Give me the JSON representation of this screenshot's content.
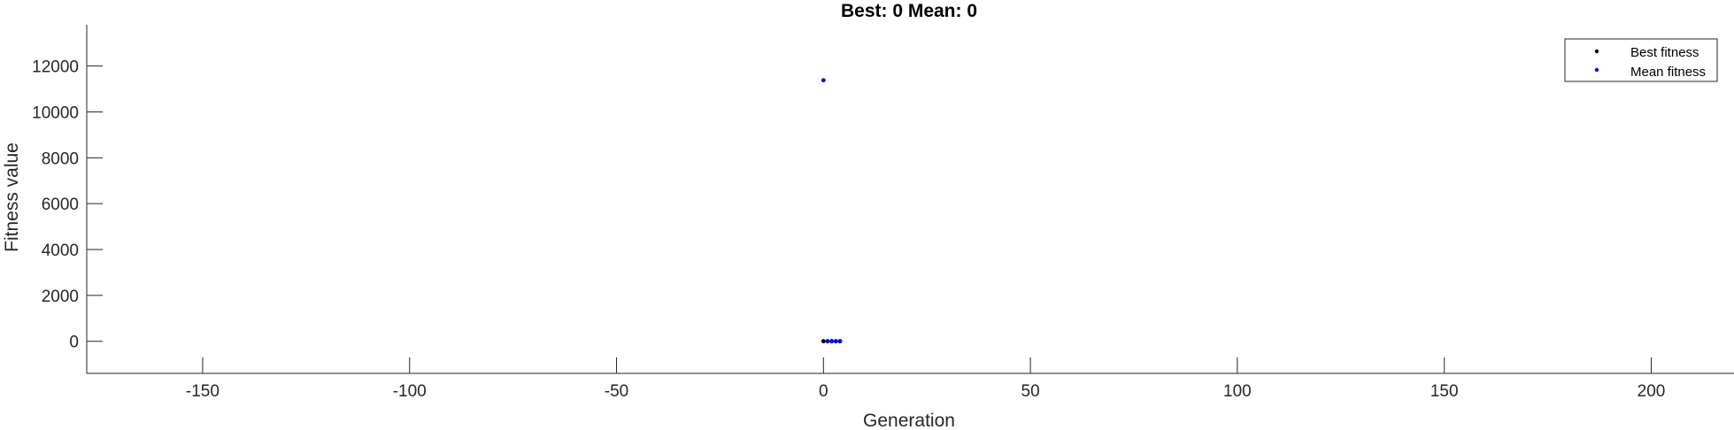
{
  "chart_data": {
    "type": "scatter",
    "title": "Best: 0 Mean: 0",
    "xlabel": "Generation",
    "ylabel": "Fitness value",
    "xlim": [
      -178,
      220
    ],
    "ylim": [
      -1400,
      13800
    ],
    "x_ticks": [
      -150,
      -100,
      -50,
      0,
      50,
      100,
      150,
      200
    ],
    "y_ticks": [
      0,
      2000,
      4000,
      6000,
      8000,
      10000,
      12000
    ],
    "grid": false,
    "legend_position": "top-right",
    "series": [
      {
        "name": "Best fitness",
        "color": "#000000",
        "x": [
          0,
          1,
          2,
          3,
          4
        ],
        "y": [
          0,
          0,
          0,
          0,
          0
        ]
      },
      {
        "name": "Mean fitness",
        "color": "#0000ff",
        "x": [
          0,
          1,
          2,
          3,
          4
        ],
        "y": [
          11380,
          0,
          0,
          0,
          0
        ]
      }
    ]
  }
}
